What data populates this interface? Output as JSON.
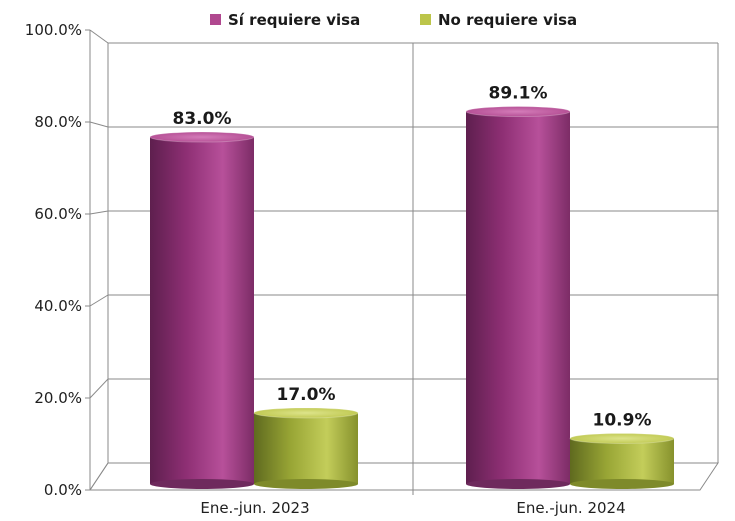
{
  "chart_data": {
    "type": "bar",
    "categories": [
      "Ene.-jun. 2023",
      "Ene.-jun. 2024"
    ],
    "series": [
      {
        "name": "Sí requiere visa",
        "values": [
          83.0,
          89.1
        ],
        "labels": [
          "83.0%",
          "89.1%"
        ],
        "color": "#b0488f"
      },
      {
        "name": "No requiere visa",
        "values": [
          17.0,
          10.9
        ],
        "labels": [
          "17.0%",
          "10.9%"
        ],
        "color": "#bcc54a"
      }
    ],
    "ylim": [
      0,
      100
    ],
    "yticks": [
      0,
      20,
      40,
      60,
      80,
      100
    ],
    "ytick_labels": [
      "0.0%",
      "20.0%",
      "40.0%",
      "60.0%",
      "80.0%",
      "100.0%"
    ],
    "legend_position": "top",
    "grid": true,
    "style": "3d-cylinder"
  }
}
